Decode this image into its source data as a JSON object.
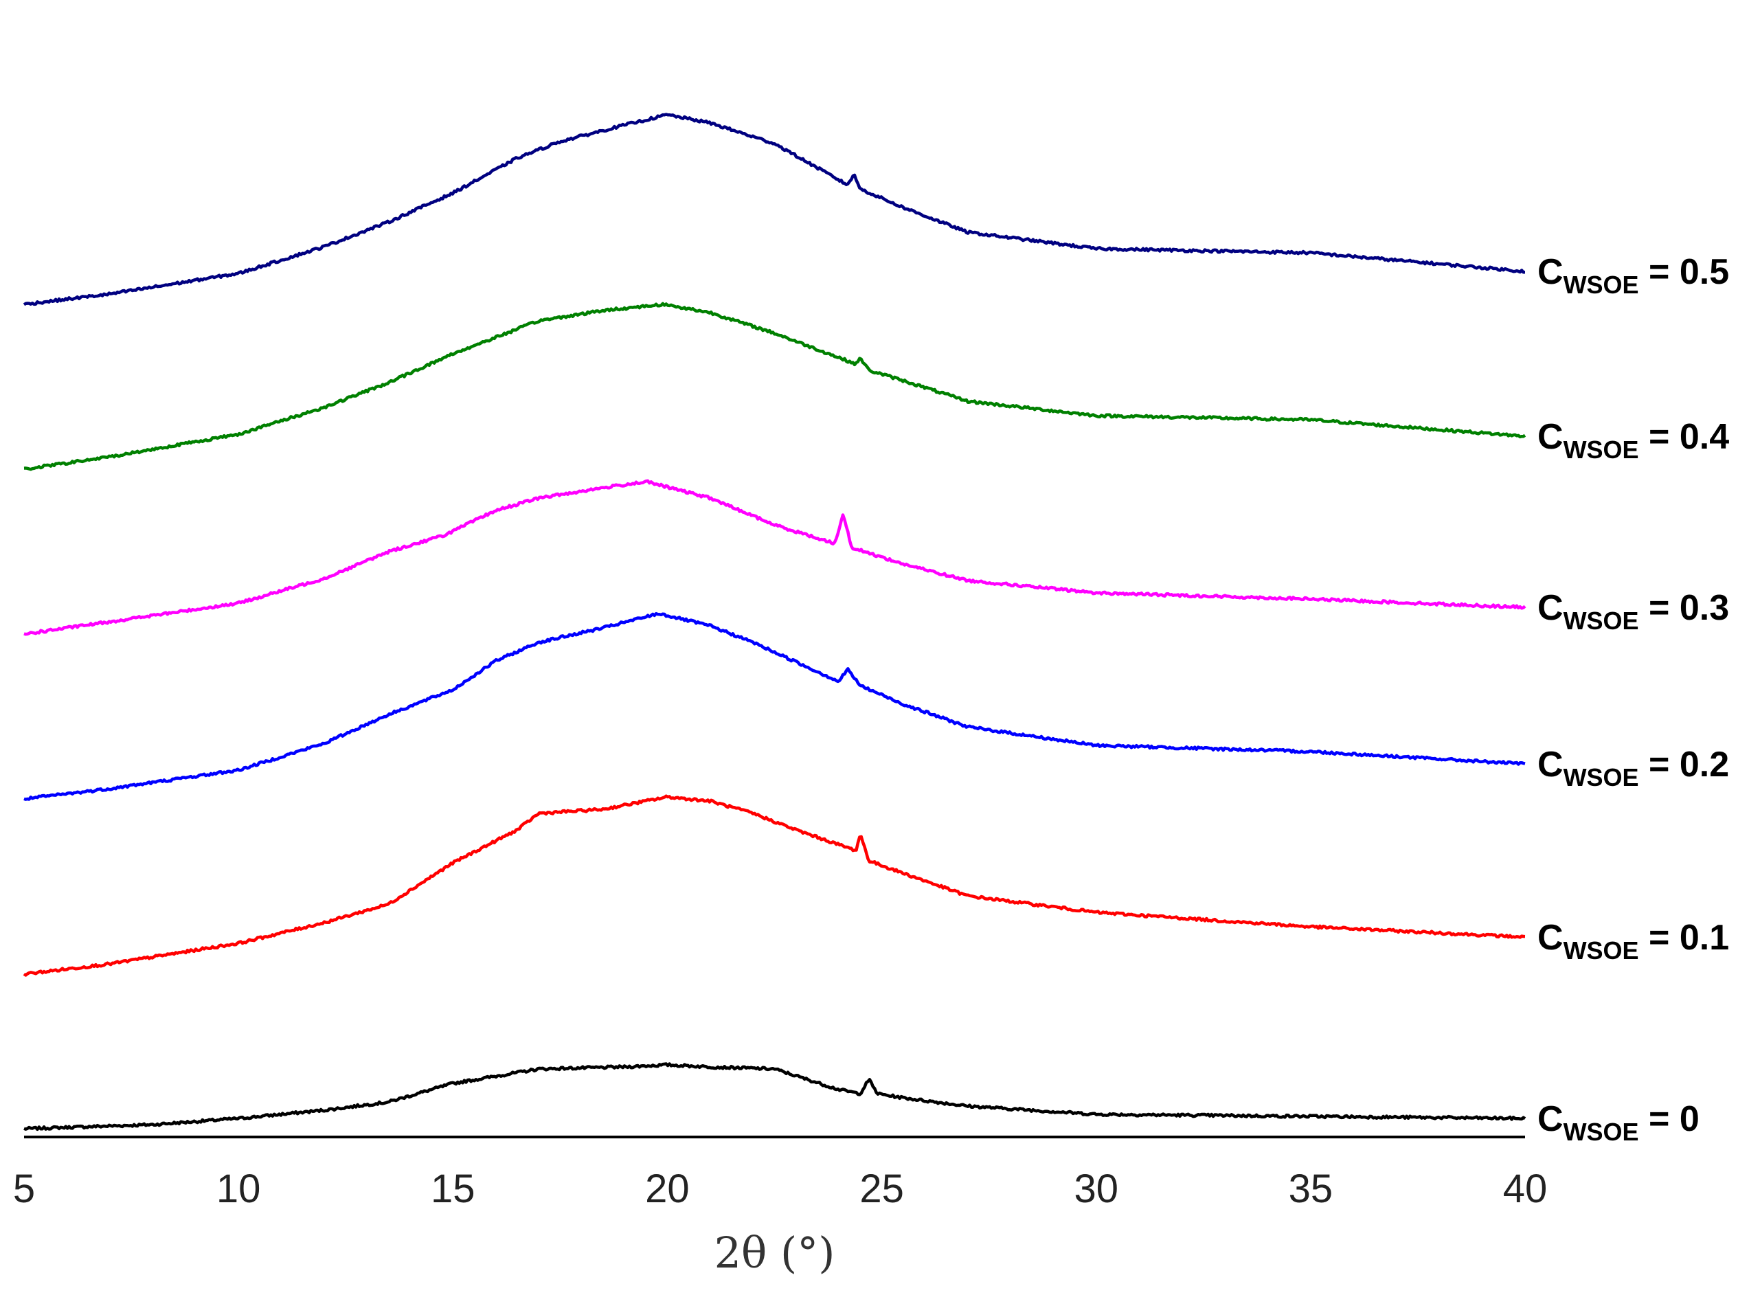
{
  "chart_data": {
    "type": "line",
    "title": "",
    "xlabel": "2θ (°)",
    "ylabel": "",
    "xlim": [
      5,
      40
    ],
    "xticks": [
      "5",
      "10",
      "15",
      "20",
      "25",
      "30",
      "35",
      "40"
    ],
    "grid": false,
    "legend": "series labels at the right end of each curve",
    "y_axis_shown": false,
    "series": [
      {
        "name": "WSOE",
        "label_main": "C",
        "label_sub": "WSOE",
        "label_value": " = 0",
        "color": "#000000",
        "offset": 0,
        "points": [
          [
            5,
            0.0
          ],
          [
            8,
            0.02
          ],
          [
            10,
            0.05
          ],
          [
            12,
            0.09
          ],
          [
            13.5,
            0.13
          ],
          [
            15,
            0.22
          ],
          [
            17,
            0.29
          ],
          [
            19,
            0.3
          ],
          [
            20,
            0.31
          ],
          [
            21,
            0.3
          ],
          [
            22.5,
            0.29
          ],
          [
            24,
            0.19
          ],
          [
            24.5,
            0.17
          ],
          [
            24.7,
            0.24
          ],
          [
            24.9,
            0.17
          ],
          [
            25.5,
            0.15
          ],
          [
            27,
            0.11
          ],
          [
            30,
            0.07
          ],
          [
            35,
            0.06
          ],
          [
            40,
            0.05
          ]
        ]
      },
      {
        "name": "WSOE",
        "label_main": "C",
        "label_sub": "WSOE",
        "label_value": " = 0.1",
        "color": "#ff0000",
        "offset": 0.75,
        "points": [
          [
            5,
            0.0
          ],
          [
            7,
            0.05
          ],
          [
            10,
            0.15
          ],
          [
            12,
            0.25
          ],
          [
            13.5,
            0.34
          ],
          [
            15,
            0.54
          ],
          [
            16.5,
            0.7
          ],
          [
            17,
            0.78
          ],
          [
            18.5,
            0.8
          ],
          [
            20,
            0.86
          ],
          [
            21,
            0.84
          ],
          [
            22,
            0.78
          ],
          [
            23,
            0.7
          ],
          [
            24.4,
            0.6
          ],
          [
            24.5,
            0.68
          ],
          [
            24.7,
            0.55
          ],
          [
            25.5,
            0.49
          ],
          [
            27,
            0.38
          ],
          [
            30,
            0.3
          ],
          [
            35,
            0.23
          ],
          [
            40,
            0.18
          ]
        ]
      },
      {
        "name": "WSOE",
        "label_main": "C",
        "label_sub": "WSOE",
        "label_value": " = 0.2",
        "color": "#0000ff",
        "offset": 1.6,
        "points": [
          [
            5,
            0.0
          ],
          [
            7,
            0.05
          ],
          [
            10,
            0.14
          ],
          [
            12,
            0.27
          ],
          [
            13.5,
            0.41
          ],
          [
            15,
            0.53
          ],
          [
            16,
            0.67
          ],
          [
            17,
            0.76
          ],
          [
            18.5,
            0.83
          ],
          [
            19.8,
            0.9
          ],
          [
            21,
            0.84
          ],
          [
            22,
            0.76
          ],
          [
            24,
            0.57
          ],
          [
            24.2,
            0.63
          ],
          [
            24.5,
            0.55
          ],
          [
            25.5,
            0.46
          ],
          [
            27,
            0.35
          ],
          [
            30,
            0.26
          ],
          [
            35,
            0.23
          ],
          [
            40,
            0.17
          ]
        ]
      },
      {
        "name": "WSOE",
        "label_main": "C",
        "label_sub": "WSOE",
        "label_value": " = 0.3",
        "color": "#ff00ff",
        "offset": 2.4,
        "points": [
          [
            5,
            0.0
          ],
          [
            7,
            0.06
          ],
          [
            10,
            0.15
          ],
          [
            12,
            0.27
          ],
          [
            13.5,
            0.4
          ],
          [
            14.8,
            0.48
          ],
          [
            16,
            0.6
          ],
          [
            17,
            0.66
          ],
          [
            18.5,
            0.71
          ],
          [
            19.5,
            0.74
          ],
          [
            21,
            0.66
          ],
          [
            22.5,
            0.53
          ],
          [
            23.9,
            0.44
          ],
          [
            24.1,
            0.58
          ],
          [
            24.3,
            0.42
          ],
          [
            25.5,
            0.34
          ],
          [
            27,
            0.26
          ],
          [
            30,
            0.2
          ],
          [
            35,
            0.17
          ],
          [
            40,
            0.13
          ]
        ]
      },
      {
        "name": "WSOE",
        "label_main": "C",
        "label_sub": "WSOE",
        "label_value": " = 0.4",
        "color": "#008000",
        "offset": 3.2,
        "points": [
          [
            5,
            0.0
          ],
          [
            7,
            0.06
          ],
          [
            10,
            0.17
          ],
          [
            12,
            0.3
          ],
          [
            13.5,
            0.42
          ],
          [
            15,
            0.56
          ],
          [
            16,
            0.64
          ],
          [
            17,
            0.72
          ],
          [
            18.5,
            0.77
          ],
          [
            19.9,
            0.8
          ],
          [
            21,
            0.76
          ],
          [
            22.5,
            0.66
          ],
          [
            24.4,
            0.51
          ],
          [
            24.5,
            0.54
          ],
          [
            24.7,
            0.48
          ],
          [
            25.5,
            0.43
          ],
          [
            27,
            0.33
          ],
          [
            30,
            0.26
          ],
          [
            35,
            0.24
          ],
          [
            40,
            0.16
          ]
        ]
      },
      {
        "name": "WSOE",
        "label_main": "C",
        "label_sub": "WSOE",
        "label_value": " = 0.5",
        "color": "#000080",
        "offset": 4.0,
        "points": [
          [
            5,
            0.0
          ],
          [
            7,
            0.05
          ],
          [
            10,
            0.15
          ],
          [
            12,
            0.28
          ],
          [
            13.5,
            0.4
          ],
          [
            15,
            0.54
          ],
          [
            16.5,
            0.71
          ],
          [
            17.5,
            0.79
          ],
          [
            19,
            0.87
          ],
          [
            20,
            0.92
          ],
          [
            21,
            0.88
          ],
          [
            22.5,
            0.78
          ],
          [
            24.2,
            0.58
          ],
          [
            24.35,
            0.63
          ],
          [
            24.5,
            0.56
          ],
          [
            25.5,
            0.47
          ],
          [
            27,
            0.35
          ],
          [
            30,
            0.27
          ],
          [
            35,
            0.25
          ],
          [
            40,
            0.16
          ]
        ]
      }
    ]
  }
}
